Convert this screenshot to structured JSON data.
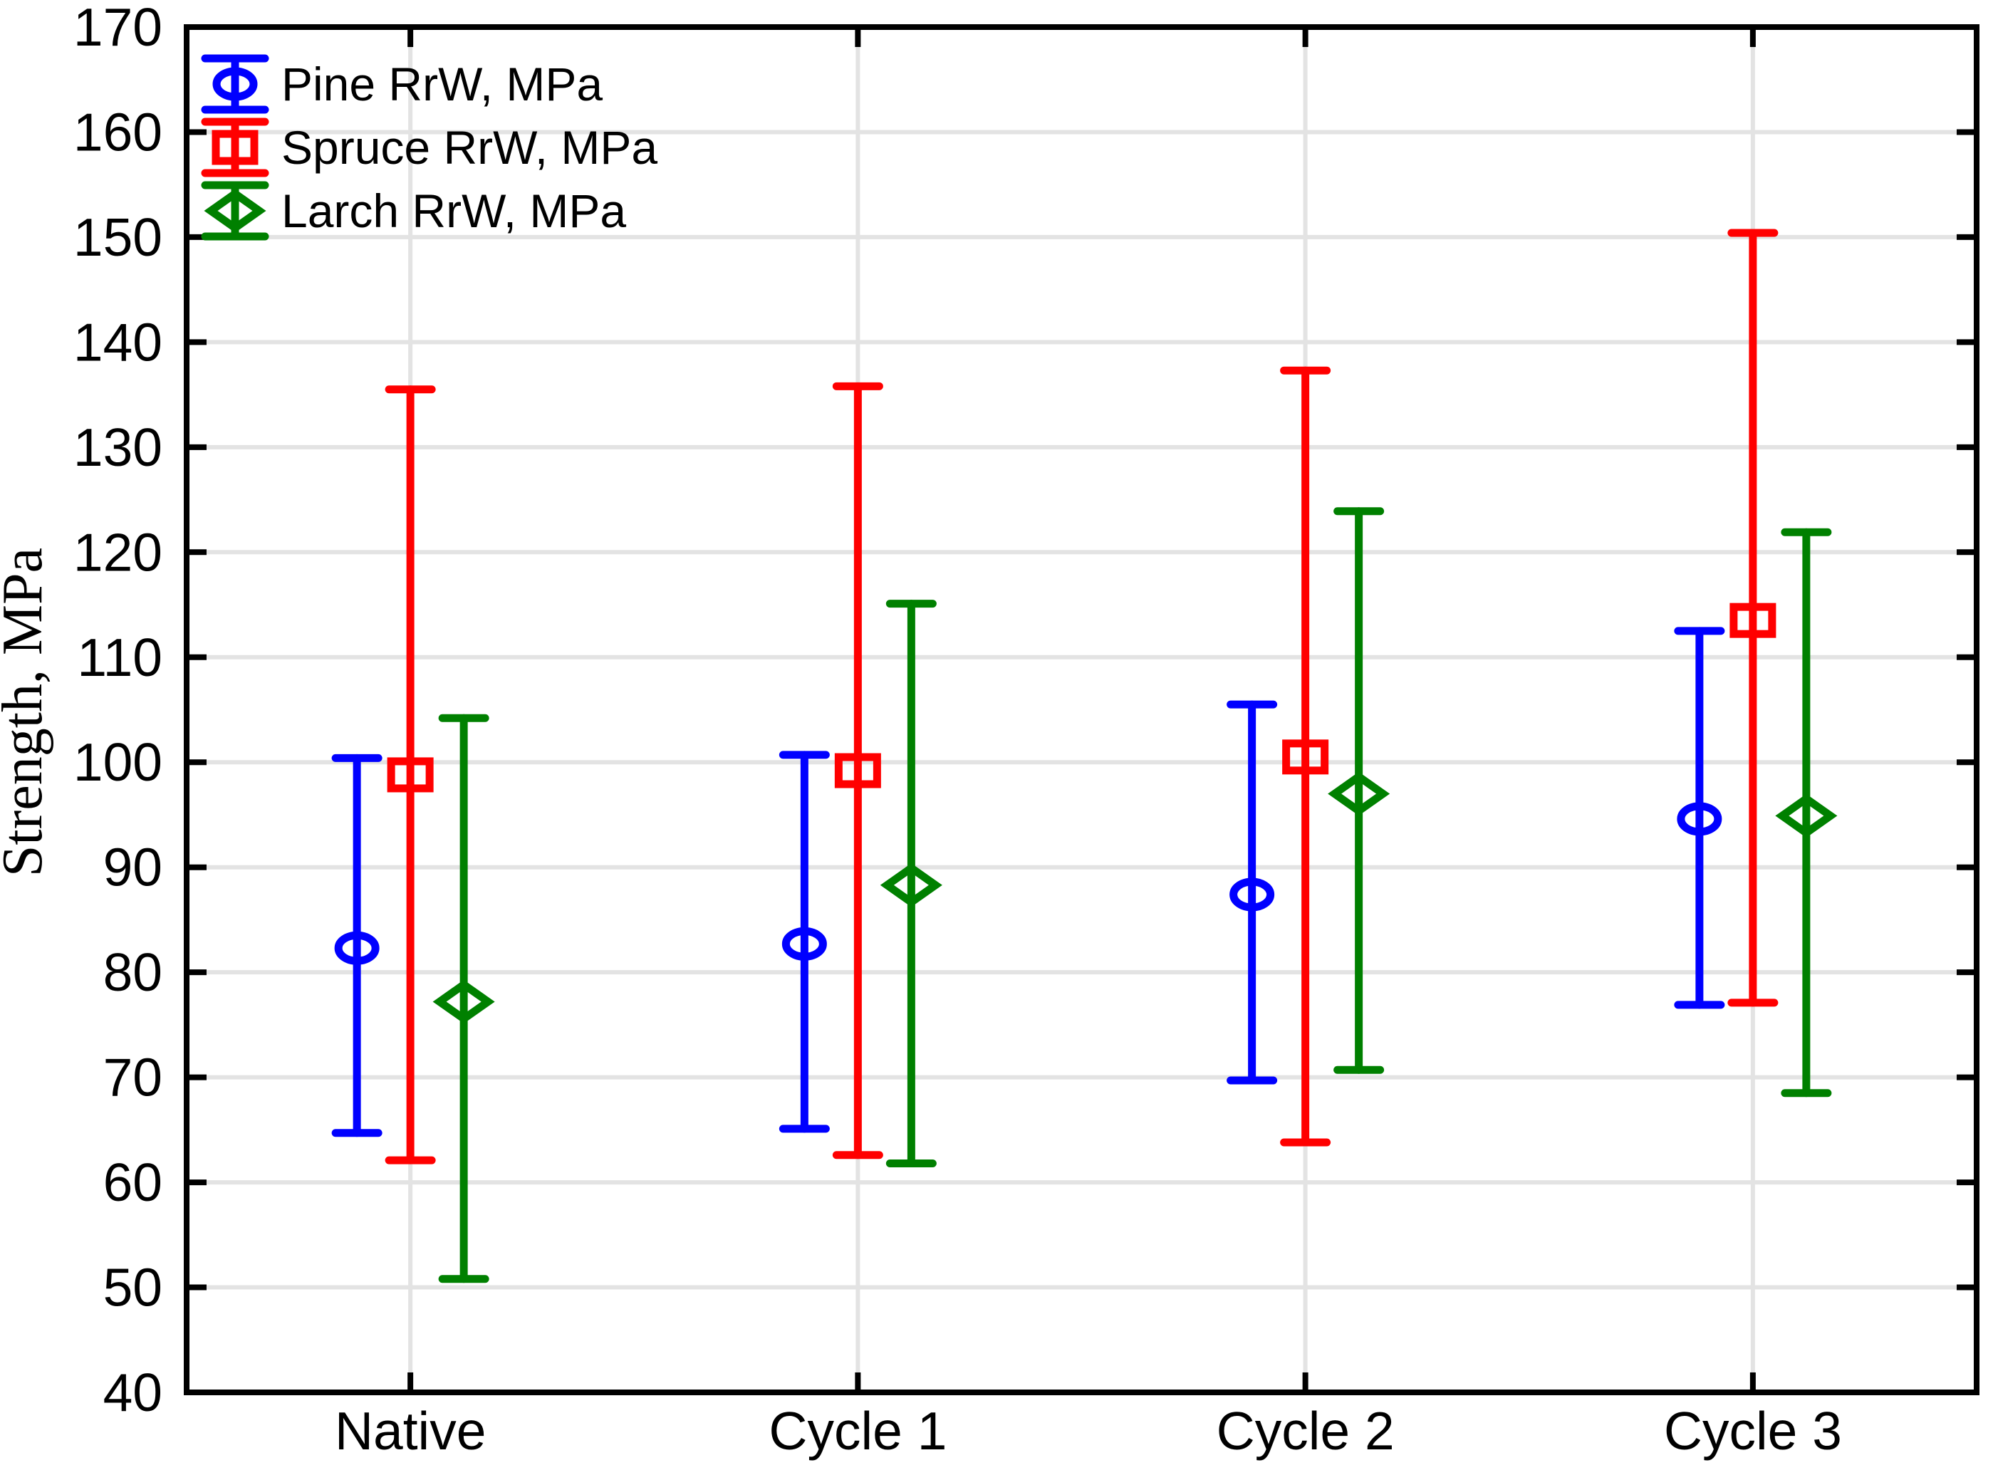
{
  "chart_data": {
    "type": "errorbar",
    "title": "",
    "xlabel": "",
    "ylabel": "Strength, MPa",
    "categories": [
      "Native",
      "Cycle 1",
      "Cycle 2",
      "Cycle 3"
    ],
    "y_axis": {
      "min": 40,
      "max": 170,
      "step": 10,
      "tick_labels": [
        "40",
        "50",
        "60",
        "70",
        "80",
        "90",
        "100",
        "110",
        "120",
        "130",
        "140",
        "150",
        "160",
        "170"
      ]
    },
    "grid": true,
    "grid_color": "#e3e3e3",
    "axis_color": "#000000",
    "legend_position": "top-left",
    "series": [
      {
        "name": "Pine RrW, MPa",
        "color": "#0000ff",
        "marker": "circle",
        "means": [
          82.3,
          82.7,
          87.4,
          94.6
        ],
        "lower": [
          64.7,
          65.1,
          69.7,
          76.9
        ],
        "upper": [
          100.4,
          100.7,
          105.5,
          112.5
        ]
      },
      {
        "name": "Spruce RrW, MPa",
        "color": "#ff0000",
        "marker": "square",
        "means": [
          98.8,
          99.2,
          100.5,
          113.5
        ],
        "lower": [
          62.1,
          62.6,
          63.8,
          77.1
        ],
        "upper": [
          135.5,
          135.8,
          137.3,
          150.4
        ]
      },
      {
        "name": "Larch RrW, MPa",
        "color": "#008000",
        "marker": "diamond",
        "means": [
          77.2,
          88.3,
          97.0,
          94.9
        ],
        "lower": [
          50.8,
          61.8,
          70.7,
          68.5
        ],
        "upper": [
          104.2,
          115.1,
          123.9,
          121.9
        ]
      }
    ]
  }
}
